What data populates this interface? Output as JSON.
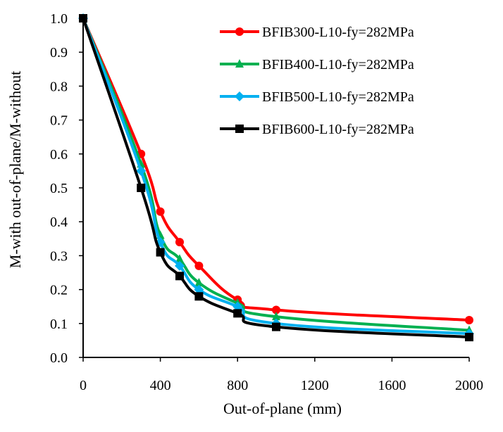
{
  "chart_data": {
    "type": "line",
    "title": "",
    "xlabel": "Out-of-plane (mm)",
    "ylabel": "M-with out-of-plane/M-without",
    "xlim": [
      0,
      2000
    ],
    "ylim": [
      0,
      1.0
    ],
    "xticks": [
      0,
      400,
      800,
      1200,
      1600,
      2000
    ],
    "xtick_labels": [
      "0",
      "400",
      "800",
      "1200",
      "1600",
      "2000"
    ],
    "yticks": [
      0,
      0.1,
      0.2,
      0.3,
      0.4,
      0.5,
      0.6,
      0.7,
      0.8,
      0.9,
      1.0
    ],
    "ytick_labels": [
      "0.0",
      "0.1",
      "0.2",
      "0.3",
      "0.4",
      "0.5",
      "0.6",
      "0.7",
      "0.8",
      "0.9",
      "1.0"
    ],
    "grid": false,
    "legend_position": "top-right",
    "x": [
      0,
      300,
      400,
      500,
      600,
      800,
      1000,
      2000
    ],
    "series": [
      {
        "name": "BFIB300-L10-fy=282MPa",
        "color": "#ff0000",
        "marker": "circle",
        "values": [
          1.0,
          0.6,
          0.43,
          0.34,
          0.27,
          0.17,
          0.14,
          0.11
        ]
      },
      {
        "name": "BFIB400-L10-fy=282MPa",
        "color": "#00b050",
        "marker": "triangle",
        "values": [
          1.0,
          0.57,
          0.36,
          0.29,
          0.22,
          0.16,
          0.12,
          0.08
        ]
      },
      {
        "name": "BFIB500-L10-fy=282MPa",
        "color": "#00b0f0",
        "marker": "diamond",
        "values": [
          1.0,
          0.55,
          0.34,
          0.27,
          0.2,
          0.15,
          0.1,
          0.07
        ]
      },
      {
        "name": "BFIB600-L10-fy=282MPa",
        "color": "#000000",
        "marker": "square",
        "values": [
          1.0,
          0.5,
          0.31,
          0.24,
          0.18,
          0.13,
          0.09,
          0.06
        ]
      }
    ]
  }
}
